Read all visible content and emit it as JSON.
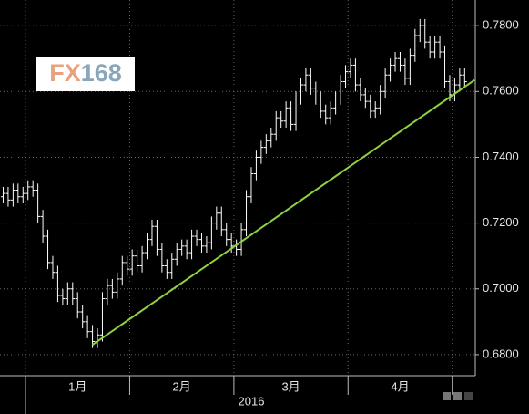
{
  "chart_data": {
    "type": "ohlc",
    "color": "#ffffff",
    "grid": true,
    "xlabel": "2016",
    "watermark": [
      "FX",
      "168"
    ],
    "categories": [
      null,
      null,
      null,
      null,
      null,
      "1月",
      "1月",
      "1月",
      "1月",
      "1月",
      "1月",
      "1月",
      "1月",
      "1月",
      "1月",
      "1月",
      "1月",
      "1月",
      "1月",
      "1月",
      "1月",
      "1月",
      "1月",
      "1月",
      "1月",
      "1月",
      "2月",
      "2月",
      "2月",
      "2月",
      "2月",
      "2月",
      "2月",
      "2月",
      "2月",
      "2月",
      "2月",
      "2月",
      "2月",
      "2月",
      "2月",
      "2月",
      "2月",
      "2月",
      "2月",
      "2月",
      "2月",
      "3月",
      "3月",
      "3月",
      "3月",
      "3月",
      "3月",
      "3月",
      "3月",
      "3月",
      "3月",
      "3月",
      "3月",
      "3月",
      "3月",
      "3月",
      "3月",
      "3月",
      "3月",
      "3月",
      "3月",
      "3月",
      "3月",
      "3月",
      "4月",
      "4月",
      "4月",
      "4月",
      "4月",
      "4月",
      "4月",
      "4月",
      "4月",
      "4月",
      "4月",
      "4月",
      "4月",
      "4月",
      "4月",
      "4月",
      "4月",
      "4月",
      "4月",
      "4月",
      "4月",
      null,
      null,
      null
    ],
    "open": [
      0.728,
      0.729,
      0.727,
      0.73,
      0.728,
      0.729,
      0.731,
      0.73,
      0.722,
      0.716,
      0.708,
      0.705,
      0.698,
      0.697,
      0.7,
      0.697,
      0.693,
      0.69,
      0.687,
      0.684,
      0.686,
      0.697,
      0.701,
      0.699,
      0.703,
      0.708,
      0.706,
      0.71,
      0.707,
      0.711,
      0.715,
      0.719,
      0.712,
      0.707,
      0.705,
      0.709,
      0.712,
      0.713,
      0.711,
      0.716,
      0.715,
      0.713,
      0.714,
      0.72,
      0.723,
      0.718,
      0.715,
      0.713,
      0.712,
      0.718,
      0.728,
      0.735,
      0.74,
      0.743,
      0.745,
      0.747,
      0.752,
      0.751,
      0.755,
      0.75,
      0.758,
      0.762,
      0.765,
      0.761,
      0.758,
      0.754,
      0.752,
      0.755,
      0.758,
      0.763,
      0.766,
      0.768,
      0.762,
      0.759,
      0.757,
      0.754,
      0.755,
      0.76,
      0.765,
      0.768,
      0.77,
      0.768,
      0.764,
      0.771,
      0.777,
      0.78,
      0.775,
      0.772,
      0.775,
      0.772,
      0.763,
      0.759,
      0.762,
      0.765
    ],
    "high": [
      0.731,
      0.731,
      0.732,
      0.732,
      0.731,
      0.733,
      0.733,
      0.732,
      0.724,
      0.718,
      0.71,
      0.707,
      0.7,
      0.702,
      0.702,
      0.699,
      0.695,
      0.692,
      0.689,
      0.688,
      0.699,
      0.703,
      0.703,
      0.705,
      0.71,
      0.71,
      0.712,
      0.712,
      0.713,
      0.717,
      0.721,
      0.721,
      0.714,
      0.709,
      0.711,
      0.714,
      0.715,
      0.715,
      0.718,
      0.718,
      0.717,
      0.716,
      0.722,
      0.725,
      0.725,
      0.72,
      0.717,
      0.715,
      0.72,
      0.73,
      0.737,
      0.742,
      0.745,
      0.747,
      0.749,
      0.754,
      0.754,
      0.757,
      0.757,
      0.76,
      0.764,
      0.767,
      0.767,
      0.763,
      0.76,
      0.756,
      0.757,
      0.76,
      0.765,
      0.768,
      0.77,
      0.77,
      0.764,
      0.761,
      0.759,
      0.757,
      0.762,
      0.767,
      0.77,
      0.772,
      0.772,
      0.77,
      0.773,
      0.779,
      0.782,
      0.782,
      0.777,
      0.777,
      0.777,
      0.774,
      0.765,
      0.764,
      0.767,
      0.767
    ],
    "low": [
      0.726,
      0.725,
      0.725,
      0.726,
      0.726,
      0.727,
      0.728,
      0.72,
      0.714,
      0.706,
      0.703,
      0.696,
      0.695,
      0.695,
      0.695,
      0.691,
      0.688,
      0.685,
      0.682,
      0.682,
      0.684,
      0.695,
      0.697,
      0.697,
      0.701,
      0.704,
      0.704,
      0.705,
      0.705,
      0.709,
      0.713,
      0.71,
      0.705,
      0.703,
      0.703,
      0.707,
      0.71,
      0.709,
      0.709,
      0.713,
      0.711,
      0.711,
      0.712,
      0.718,
      0.716,
      0.713,
      0.711,
      0.71,
      0.71,
      0.716,
      0.726,
      0.733,
      0.738,
      0.741,
      0.743,
      0.745,
      0.749,
      0.749,
      0.748,
      0.748,
      0.756,
      0.76,
      0.759,
      0.756,
      0.752,
      0.75,
      0.75,
      0.753,
      0.756,
      0.761,
      0.764,
      0.76,
      0.757,
      0.755,
      0.752,
      0.752,
      0.753,
      0.758,
      0.763,
      0.766,
      0.766,
      0.762,
      0.762,
      0.769,
      0.775,
      0.773,
      0.77,
      0.77,
      0.77,
      0.761,
      0.757,
      0.757,
      0.76,
      0.761
    ],
    "close": [
      0.729,
      0.727,
      0.73,
      0.728,
      0.729,
      0.731,
      0.73,
      0.722,
      0.716,
      0.708,
      0.705,
      0.698,
      0.697,
      0.7,
      0.697,
      0.693,
      0.69,
      0.687,
      0.684,
      0.686,
      0.697,
      0.701,
      0.699,
      0.703,
      0.708,
      0.706,
      0.71,
      0.707,
      0.711,
      0.715,
      0.719,
      0.712,
      0.707,
      0.705,
      0.709,
      0.712,
      0.713,
      0.711,
      0.716,
      0.715,
      0.713,
      0.714,
      0.72,
      0.723,
      0.718,
      0.715,
      0.713,
      0.712,
      0.718,
      0.728,
      0.735,
      0.74,
      0.743,
      0.745,
      0.747,
      0.752,
      0.751,
      0.755,
      0.75,
      0.758,
      0.762,
      0.765,
      0.761,
      0.758,
      0.754,
      0.752,
      0.755,
      0.758,
      0.763,
      0.766,
      0.768,
      0.762,
      0.759,
      0.757,
      0.754,
      0.755,
      0.76,
      0.765,
      0.768,
      0.77,
      0.768,
      0.764,
      0.771,
      0.777,
      0.78,
      0.775,
      0.772,
      0.775,
      0.772,
      0.763,
      0.759,
      0.762,
      0.765,
      0.763
    ],
    "trendline": {
      "x": [
        18,
        95
      ],
      "y": [
        0.683,
        0.7635
      ],
      "color": "#8fd13f"
    },
    "ylim": [
      0.6736,
      0.7878
    ],
    "yticks": [
      {
        "value": 0.68,
        "label": "0.6800"
      },
      {
        "value": 0.7,
        "label": "0.7000"
      },
      {
        "value": 0.72,
        "label": "0.7200"
      },
      {
        "value": 0.74,
        "label": "0.7400"
      },
      {
        "value": 0.76,
        "label": "0.7600"
      },
      {
        "value": 0.78,
        "label": "0.7800"
      }
    ]
  }
}
